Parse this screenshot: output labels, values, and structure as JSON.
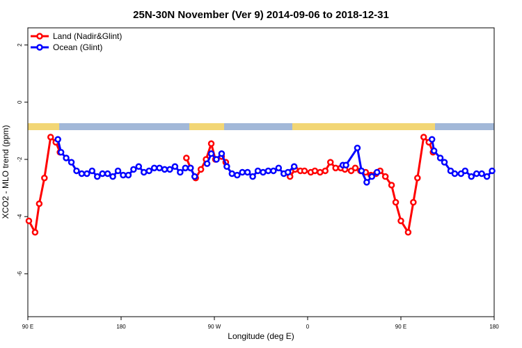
{
  "chart_data": {
    "type": "line",
    "title": "25N-30N November (Ver 9)   2014-09-06 to 2018-12-31",
    "x_label": "Longitude (deg E)",
    "y_label": "XCO2 - MLO trend (ppm)",
    "xlim": [
      90,
      540
    ],
    "xticks": [
      {
        "value": 90,
        "label": "90 E"
      },
      {
        "value": 180,
        "label": "180"
      },
      {
        "value": 270,
        "label": "90 W"
      },
      {
        "value": 360,
        "label": "0"
      },
      {
        "value": 450,
        "label": "90 E"
      },
      {
        "value": 540,
        "label": "180"
      }
    ],
    "ylim": [
      -7.5,
      2.6
    ],
    "yticks": [
      -6,
      -4,
      -2,
      0,
      2
    ],
    "legend": "top-left",
    "series": [
      {
        "name": "Land (Nadir&Glint)",
        "color": "#ff0000",
        "x": [
          91,
          97,
          101,
          106,
          112,
          117,
          121,
          200,
          243,
          247,
          252,
          257,
          262,
          267,
          271,
          277,
          281,
          320,
          343,
          348,
          353,
          357,
          363,
          367,
          372,
          377,
          382,
          387,
          392,
          396,
          402,
          406,
          411,
          416,
          421,
          426,
          430,
          435,
          441,
          445,
          450,
          457,
          462,
          466,
          472,
          477,
          481
        ],
        "values": [
          -4.15,
          -4.55,
          -3.55,
          -2.65,
          -1.22,
          -1.4,
          -1.75,
          null,
          -1.95,
          -2.3,
          -2.65,
          -2.35,
          -2.0,
          -1.45,
          -2.0,
          -1.9,
          -2.1,
          null,
          -2.6,
          -2.35,
          -2.4,
          -2.4,
          -2.45,
          -2.4,
          -2.45,
          -2.4,
          -2.1,
          -2.3,
          -2.3,
          -2.35,
          -2.4,
          -2.3,
          -2.4,
          -2.45,
          -2.55,
          -2.5,
          -2.4,
          -2.6,
          -2.9,
          -3.5,
          -4.15,
          -4.55,
          -3.5,
          -2.65,
          -1.22,
          -1.4,
          -1.75
        ]
      },
      {
        "name": "Ocean (Glint)",
        "color": "#0000ff",
        "x": [
          119,
          122,
          127,
          132,
          137,
          142,
          147,
          152,
          157,
          162,
          167,
          172,
          177,
          182,
          187,
          192,
          197,
          202,
          207,
          212,
          217,
          222,
          227,
          232,
          237,
          242,
          247,
          251,
          256,
          263,
          267,
          272,
          277,
          282,
          287,
          292,
          297,
          302,
          307,
          312,
          317,
          322,
          327,
          332,
          337,
          341,
          347,
          370,
          394,
          397,
          408,
          412,
          417,
          422,
          427,
          450,
          480,
          482,
          488,
          492,
          498,
          502,
          508,
          512,
          518,
          523,
          528,
          533,
          538
        ],
        "values": [
          -1.3,
          -1.75,
          -1.95,
          -2.1,
          -2.4,
          -2.5,
          -2.5,
          -2.4,
          -2.6,
          -2.5,
          -2.5,
          -2.6,
          -2.4,
          -2.55,
          -2.55,
          -2.35,
          -2.25,
          -2.45,
          -2.4,
          -2.3,
          -2.3,
          -2.35,
          -2.35,
          -2.25,
          -2.45,
          -2.3,
          -2.3,
          -2.6,
          null,
          -2.15,
          -1.8,
          -2.0,
          -1.8,
          -2.25,
          -2.5,
          -2.55,
          -2.45,
          -2.45,
          -2.6,
          -2.4,
          -2.45,
          -2.4,
          -2.4,
          -2.3,
          -2.5,
          -2.45,
          -2.25,
          null,
          -2.2,
          -2.2,
          -1.6,
          -2.4,
          -2.8,
          -2.6,
          -2.45,
          null,
          -1.3,
          -1.7,
          -1.95,
          -2.1,
          -2.4,
          -2.5,
          -2.5,
          -2.4,
          -2.6,
          -2.5,
          -2.5,
          -2.6,
          -2.4
        ]
      }
    ]
  }
}
